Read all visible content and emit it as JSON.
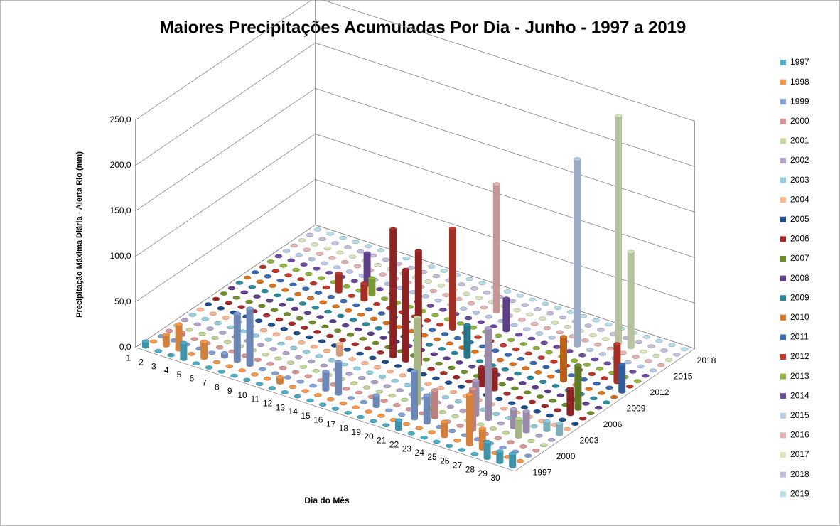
{
  "chart_data": {
    "type": "bar3d",
    "title": "Maiores Precipitações Acumuladas Por Dia - Junho - 1997 a 2019",
    "x_label": "Dia do Mês",
    "y_label": "Precipitação Máxima Diária - Alerta Rio (mm)",
    "categories": [
      "1",
      "2",
      "3",
      "4",
      "5",
      "6",
      "7",
      "8",
      "9",
      "10",
      "11",
      "12",
      "13",
      "14",
      "15",
      "16",
      "17",
      "18",
      "19",
      "20",
      "21",
      "22",
      "23",
      "24",
      "25",
      "26",
      "27",
      "28",
      "29",
      "30"
    ],
    "depth_ticks": [
      0,
      3,
      6,
      9,
      12,
      15,
      18,
      21
    ],
    "ylim": [
      0,
      250
    ],
    "yticks": [
      {
        "value": 0,
        "label": "0,0"
      },
      {
        "value": 50,
        "label": "50,0"
      },
      {
        "value": 100,
        "label": "100,0"
      },
      {
        "value": 150,
        "label": "150,0"
      },
      {
        "value": 200,
        "label": "200,0"
      },
      {
        "value": 250,
        "label": "250,0"
      }
    ],
    "grid": true,
    "legend": "right",
    "series": [
      {
        "name": "1997",
        "color": "#4bacc6",
        "values": [
          6,
          0,
          0,
          18,
          0,
          0,
          0,
          0,
          0,
          0,
          0,
          0,
          0,
          0,
          0,
          0,
          0,
          0,
          0,
          0,
          10,
          0,
          0,
          0,
          0,
          0,
          0,
          18,
          12,
          14
        ]
      },
      {
        "name": "1998",
        "color": "#f79646",
        "values": [
          0,
          12,
          28,
          0,
          18,
          0,
          0,
          0,
          0,
          0,
          6,
          0,
          0,
          0,
          0,
          0,
          0,
          0,
          0,
          0,
          0,
          0,
          0,
          16,
          0,
          55,
          22,
          0,
          0,
          0
        ]
      },
      {
        "name": "1999",
        "color": "#7f9fd6",
        "values": [
          0,
          0,
          0,
          0,
          0,
          4,
          52,
          62,
          0,
          0,
          0,
          0,
          0,
          20,
          35,
          0,
          0,
          12,
          0,
          0,
          52,
          30,
          0,
          0,
          0,
          0,
          0,
          0,
          0,
          0
        ]
      },
      {
        "name": "2000",
        "color": "#d99694",
        "values": [
          0,
          3,
          0,
          0,
          0,
          0,
          0,
          0,
          0,
          0,
          0,
          0,
          0,
          0,
          0,
          0,
          0,
          0,
          0,
          0,
          0,
          30,
          0,
          0,
          45,
          0,
          0,
          0,
          0,
          0
        ]
      },
      {
        "name": "2001",
        "color": "#c3d69b",
        "values": [
          0,
          0,
          0,
          0,
          0,
          0,
          0,
          0,
          0,
          0,
          0,
          0,
          0,
          0,
          0,
          0,
          0,
          0,
          0,
          95,
          0,
          0,
          0,
          0,
          0,
          0,
          0,
          20,
          0,
          0
        ]
      },
      {
        "name": "2002",
        "color": "#b3a2c7",
        "values": [
          0,
          0,
          0,
          0,
          0,
          0,
          0,
          0,
          0,
          0,
          0,
          0,
          0,
          0,
          0,
          0,
          0,
          0,
          0,
          0,
          0,
          0,
          0,
          38,
          100,
          0,
          20,
          22,
          0,
          0
        ]
      },
      {
        "name": "2003",
        "color": "#93cddd",
        "values": [
          0,
          0,
          0,
          0,
          0,
          0,
          0,
          0,
          0,
          0,
          0,
          0,
          0,
          0,
          0,
          0,
          0,
          0,
          0,
          0,
          0,
          0,
          0,
          0,
          0,
          0,
          0,
          0,
          10,
          12
        ]
      },
      {
        "name": "2004",
        "color": "#fab58e",
        "values": [
          0,
          0,
          0,
          0,
          0,
          0,
          0,
          0,
          0,
          0,
          0,
          12,
          0,
          0,
          0,
          0,
          0,
          0,
          0,
          0,
          0,
          0,
          0,
          0,
          0,
          0,
          0,
          0,
          0,
          0
        ]
      },
      {
        "name": "2005",
        "color": "#1f4e8c",
        "values": [
          0,
          0,
          0,
          0,
          0,
          0,
          0,
          0,
          0,
          0,
          0,
          0,
          0,
          0,
          0,
          0,
          0,
          0,
          0,
          0,
          0,
          0,
          0,
          0,
          0,
          0,
          0,
          0,
          0,
          0
        ]
      },
      {
        "name": "2006",
        "color": "#a52a2a",
        "values": [
          0,
          0,
          0,
          0,
          0,
          0,
          0,
          0,
          0,
          0,
          0,
          0,
          0,
          0,
          140,
          100,
          125,
          0,
          0,
          0,
          0,
          20,
          22,
          0,
          0,
          0,
          0,
          0,
          28,
          0
        ]
      },
      {
        "name": "2007",
        "color": "#6e8e2a",
        "values": [
          0,
          0,
          0,
          0,
          0,
          0,
          0,
          0,
          0,
          0,
          0,
          0,
          0,
          0,
          0,
          0,
          0,
          0,
          0,
          0,
          0,
          0,
          0,
          0,
          0,
          0,
          0,
          0,
          48,
          0
        ]
      },
      {
        "name": "2008",
        "color": "#5f3f8c",
        "values": [
          0,
          0,
          0,
          0,
          0,
          0,
          0,
          0,
          0,
          0,
          0,
          0,
          0,
          0,
          0,
          0,
          0,
          0,
          0,
          0,
          0,
          0,
          0,
          0,
          0,
          0,
          0,
          0,
          0,
          0
        ]
      },
      {
        "name": "2009",
        "color": "#2b8a9e",
        "values": [
          0,
          0,
          0,
          0,
          0,
          0,
          0,
          0,
          0,
          0,
          0,
          0,
          0,
          0,
          0,
          0,
          0,
          0,
          35,
          0,
          0,
          0,
          0,
          0,
          0,
          0,
          0,
          0,
          0,
          0
        ]
      },
      {
        "name": "2010",
        "color": "#d9731d",
        "values": [
          0,
          0,
          0,
          0,
          0,
          0,
          0,
          0,
          0,
          0,
          0,
          0,
          0,
          0,
          0,
          0,
          0,
          0,
          0,
          0,
          0,
          0,
          0,
          0,
          0,
          48,
          0,
          0,
          0,
          0
        ]
      },
      {
        "name": "2011",
        "color": "#3b6bb3",
        "values": [
          0,
          0,
          0,
          0,
          0,
          0,
          0,
          0,
          0,
          0,
          0,
          0,
          0,
          0,
          0,
          0,
          0,
          0,
          0,
          0,
          0,
          0,
          0,
          0,
          0,
          0,
          0,
          0,
          0,
          30
        ]
      },
      {
        "name": "2012",
        "color": "#c0392b",
        "values": [
          0,
          0,
          0,
          0,
          0,
          0,
          20,
          0,
          18,
          0,
          0,
          0,
          0,
          0,
          0,
          110,
          0,
          0,
          0,
          0,
          0,
          0,
          0,
          0,
          0,
          0,
          0,
          0,
          42,
          0
        ]
      },
      {
        "name": "2013",
        "color": "#8db33a",
        "values": [
          0,
          0,
          0,
          0,
          0,
          0,
          0,
          0,
          18,
          0,
          0,
          0,
          0,
          0,
          0,
          0,
          0,
          0,
          0,
          0,
          0,
          0,
          0,
          0,
          0,
          0,
          0,
          0,
          0,
          0
        ]
      },
      {
        "name": "2014",
        "color": "#6d4a9e",
        "values": [
          0,
          0,
          0,
          0,
          0,
          0,
          0,
          35,
          0,
          0,
          0,
          0,
          0,
          0,
          0,
          0,
          0,
          0,
          35,
          0,
          0,
          0,
          0,
          0,
          0,
          0,
          0,
          0,
          0,
          0
        ]
      },
      {
        "name": "2015",
        "color": "#b8c9e8",
        "values": [
          0,
          0,
          0,
          0,
          0,
          0,
          0,
          0,
          0,
          0,
          0,
          0,
          0,
          0,
          0,
          0,
          0,
          0,
          0,
          0,
          0,
          0,
          0,
          205,
          0,
          0,
          0,
          0,
          0,
          0
        ]
      },
      {
        "name": "2016",
        "color": "#e6b3b3",
        "values": [
          0,
          0,
          0,
          0,
          0,
          0,
          0,
          0,
          0,
          0,
          0,
          0,
          0,
          0,
          0,
          0,
          140,
          0,
          0,
          0,
          0,
          0,
          0,
          0,
          0,
          0,
          0,
          0,
          0,
          0
        ]
      },
      {
        "name": "2017",
        "color": "#d7e4bd",
        "values": [
          0,
          0,
          0,
          0,
          0,
          0,
          0,
          0,
          0,
          0,
          0,
          0,
          0,
          0,
          0,
          0,
          0,
          0,
          0,
          0,
          0,
          0,
          0,
          0,
          0,
          250,
          105,
          0,
          0,
          0
        ]
      },
      {
        "name": "2018",
        "color": "#c7bcd9",
        "values": [
          0,
          0,
          0,
          0,
          0,
          0,
          0,
          0,
          0,
          0,
          0,
          0,
          0,
          0,
          0,
          0,
          0,
          0,
          0,
          0,
          0,
          0,
          0,
          0,
          0,
          0,
          0,
          0,
          0,
          0
        ]
      },
      {
        "name": "2019",
        "color": "#b7dee8",
        "values": [
          0,
          0,
          0,
          0,
          0,
          0,
          0,
          0,
          0,
          0,
          0,
          0,
          0,
          0,
          0,
          0,
          0,
          0,
          0,
          0,
          0,
          0,
          0,
          0,
          0,
          0,
          0,
          0,
          0,
          0
        ]
      }
    ]
  }
}
